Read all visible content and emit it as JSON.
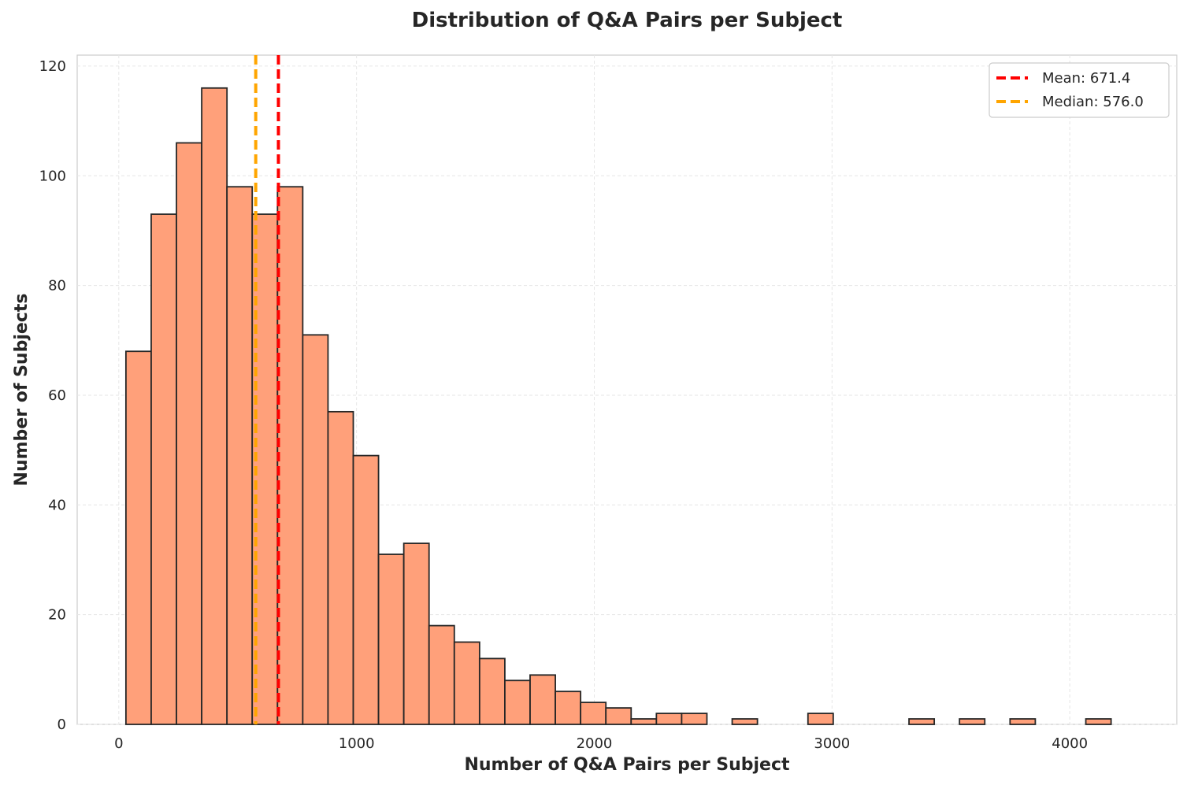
{
  "chart_data": {
    "type": "bar",
    "title": "Distribution of Q&A Pairs per Subject",
    "xlabel": "Number of Q&A Pairs per Subject",
    "ylabel": "Number of Subjects",
    "xlim": [
      -175,
      4450
    ],
    "ylim": [
      0,
      122
    ],
    "x_ticks": [
      0,
      1000,
      2000,
      3000,
      4000
    ],
    "y_ticks": [
      0,
      20,
      40,
      60,
      80,
      100,
      120
    ],
    "grid": true,
    "legend_position": "top-right",
    "bin_start": 30,
    "bin_width": 106.25,
    "counts": [
      68,
      93,
      106,
      116,
      98,
      93,
      98,
      71,
      57,
      49,
      31,
      33,
      18,
      15,
      12,
      8,
      9,
      6,
      4,
      3,
      1,
      2,
      2,
      0,
      1,
      0,
      0,
      2,
      0,
      0,
      0,
      1,
      0,
      1,
      0,
      1,
      0,
      0,
      1
    ],
    "bar_color": "#FFA07A",
    "bar_edge_color": "#262626",
    "reference_lines": [
      {
        "name": "Mean: 671.4",
        "value": 671.4,
        "color": "#FF0000"
      },
      {
        "name": "Median: 576.0",
        "value": 576.0,
        "color": "#FFA500"
      }
    ]
  }
}
